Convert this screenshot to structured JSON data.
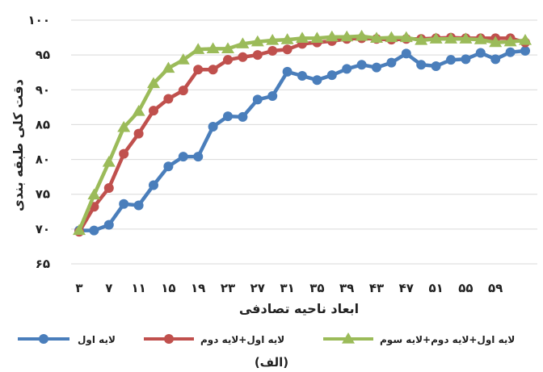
{
  "chart_data": {
    "type": "line",
    "xlabel": "ابعاد ناحیه تصادفی",
    "ylabel": "دقت کلی طبقه بندی",
    "caption": "(الف)",
    "ylim": [
      65,
      100
    ],
    "yticks": [
      "۶۵",
      "۷۰",
      "۷۵",
      "۸۰",
      "۸۵",
      "۹۰",
      "۹۵",
      "۱۰۰"
    ],
    "x": [
      3,
      5,
      7,
      9,
      11,
      13,
      15,
      17,
      19,
      21,
      23,
      25,
      27,
      29,
      31,
      33,
      35,
      37,
      39,
      41,
      43,
      45,
      47,
      49,
      51,
      53,
      55,
      57,
      59,
      61,
      63
    ],
    "xticks": [
      3,
      7,
      11,
      15,
      19,
      23,
      27,
      31,
      35,
      39,
      43,
      47,
      51,
      55,
      59
    ],
    "xtick_labels": [
      "۳",
      "۷",
      "۱۱",
      "۱۵",
      "۱۹",
      "۲۳",
      "۲۷",
      "۳۱",
      "۳۵",
      "۳۹",
      "۴۳",
      "۴۷",
      "۵۱",
      "۵۵",
      "۵۹"
    ],
    "grid": "horizontal",
    "legend_position": "bottom",
    "series": [
      {
        "name": "لایه اول",
        "color": "#4a7ebb",
        "marker": "circle",
        "values": [
          69.8,
          69.8,
          70.6,
          73.6,
          73.4,
          76.3,
          79.0,
          80.4,
          80.4,
          84.7,
          86.2,
          86.1,
          88.6,
          89.1,
          92.6,
          92.0,
          91.4,
          92.1,
          93.0,
          93.6,
          93.2,
          93.9,
          95.2,
          93.6,
          93.4,
          94.3,
          94.4,
          95.3,
          94.4,
          95.4,
          95.6
        ]
      },
      {
        "name": "لایه اول+لایه دوم",
        "color": "#c0504d",
        "marker": "circle",
        "values": [
          69.6,
          73.2,
          75.9,
          80.8,
          83.7,
          87.0,
          88.7,
          89.9,
          92.9,
          92.9,
          94.3,
          94.7,
          95.0,
          95.6,
          95.8,
          96.6,
          96.8,
          97.0,
          97.3,
          97.4,
          97.3,
          97.2,
          97.3,
          97.3,
          97.4,
          97.5,
          97.4,
          97.4,
          97.4,
          97.4,
          96.8
        ]
      },
      {
        "name": "لایه اول+لایه دوم+لایه سوم",
        "color": "#9bbb59",
        "marker": "triangle",
        "values": [
          69.8,
          74.9,
          79.6,
          84.6,
          86.9,
          90.9,
          93.1,
          94.3,
          95.8,
          95.9,
          95.9,
          96.6,
          96.9,
          97.1,
          97.2,
          97.4,
          97.4,
          97.6,
          97.6,
          97.7,
          97.4,
          97.5,
          97.5,
          97.1,
          97.3,
          97.3,
          97.3,
          97.2,
          96.8,
          96.9,
          97.1
        ]
      }
    ]
  }
}
